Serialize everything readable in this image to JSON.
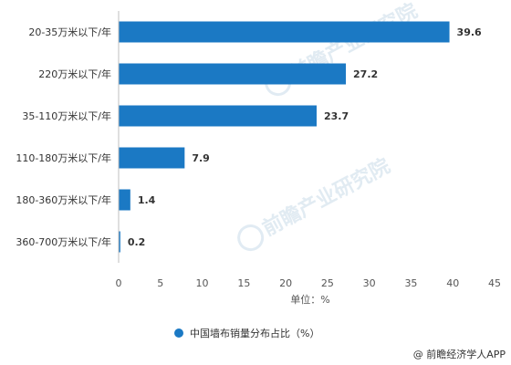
{
  "chart_data": {
    "type": "bar",
    "orientation": "horizontal",
    "categories": [
      "20-35万米以下/年",
      "220万米以下/年",
      "35-110万米以下/年",
      "110-180万米以下/年",
      "180-360万米以下/年",
      "360-700万米以下/年"
    ],
    "series": [
      {
        "name": "中国墙布销量分布占比（%）",
        "values": [
          39.6,
          27.2,
          23.7,
          7.9,
          1.4,
          0.2
        ]
      }
    ],
    "xlabel": "单位：%",
    "ylabel": "",
    "xlim": [
      0,
      45
    ],
    "xticks": [
      0,
      5,
      10,
      15,
      20,
      25,
      30,
      35,
      40,
      45
    ],
    "grid": false,
    "legend_position": "bottom",
    "bar_color": "#1b79c4"
  },
  "watermark": "前瞻产业研究院",
  "credit": {
    "icon": "at-sign-icon",
    "text": "@ 前瞻经济学人APP"
  }
}
